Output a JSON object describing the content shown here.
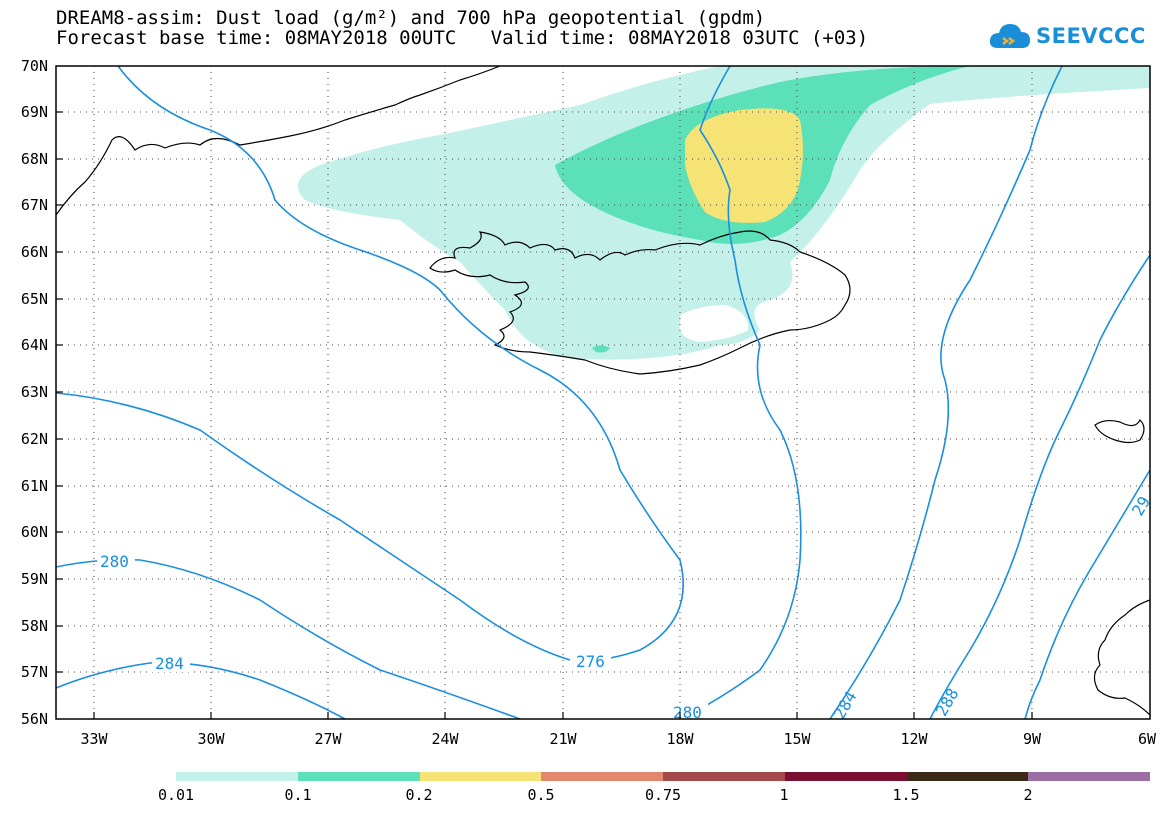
{
  "header": {
    "title_line1": "DREAM8-assim: Dust load (g/m²) and 700 hPa geopotential (gpdm)",
    "title_line2": "Forecast base time: 08MAY2018 00UTC   Valid time: 08MAY2018 03UTC (+03)"
  },
  "logo": {
    "text": "SEEVCCC",
    "icon": "cloud-icon"
  },
  "map": {
    "lat_labels": [
      "70N",
      "69N",
      "68N",
      "67N",
      "66N",
      "65N",
      "64N",
      "63N",
      "62N",
      "61N",
      "60N",
      "59N",
      "58N",
      "57N",
      "56N"
    ],
    "lon_labels": [
      "33W",
      "30W",
      "27W",
      "24W",
      "21W",
      "18W",
      "15W",
      "12W",
      "9W",
      "6W"
    ],
    "contour_labels": [
      "280",
      "284",
      "276",
      "280",
      "284",
      "288",
      "29"
    ],
    "region": "Iceland and North Atlantic"
  },
  "colorbar": {
    "labels": [
      "0.01",
      "0.1",
      "0.2",
      "0.5",
      "0.75",
      "1",
      "1.5",
      "2"
    ],
    "colors": [
      "#c3f1ea",
      "#5ce0b8",
      "#f5e375",
      "#e2876b",
      "#a44a4a",
      "#7a0f32",
      "#3c2a18",
      "#9c6fa4"
    ]
  },
  "colors": {
    "contour": "#1a8fe0",
    "coast": "#000000"
  }
}
